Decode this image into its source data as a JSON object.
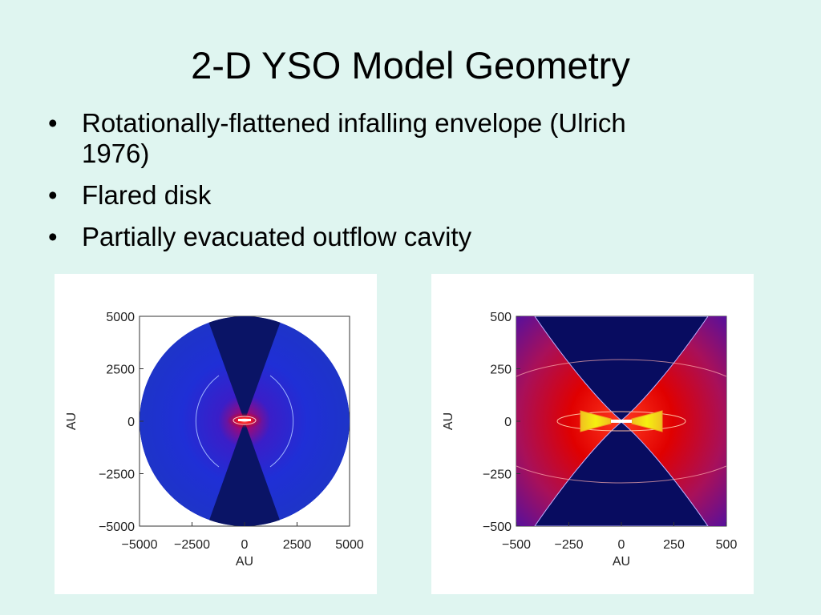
{
  "slide": {
    "title": "2-D YSO Model Geometry",
    "bullets": [
      "Rotationally-flattened infalling envelope (Ulrich 1976)",
      "Flared disk",
      "Partially evacuated outflow cavity"
    ],
    "bullet_marker": "•"
  },
  "chart_data": [
    {
      "type": "heatmap",
      "xlabel": "AU",
      "ylabel": "AU",
      "xlim": [
        -5000,
        5000
      ],
      "ylim": [
        -5000,
        5000
      ],
      "xticks": [
        "−5000",
        "−2500",
        "0",
        "2500",
        "5000"
      ],
      "yticks": [
        "5000",
        "2500",
        "0",
        "−2500",
        "−5000"
      ],
      "grid": false,
      "colors": {
        "envelope": "#1f2fd6",
        "cavity": "#0a1466",
        "core": "#c8001a",
        "contour": "#9fb6ff"
      }
    },
    {
      "type": "heatmap",
      "xlabel": "AU",
      "ylabel": "AU",
      "xlim": [
        -500,
        500
      ],
      "ylim": [
        -500,
        500
      ],
      "xticks": [
        "−500",
        "−250",
        "0",
        "250",
        "500"
      ],
      "yticks": [
        "500",
        "250",
        "0",
        "−250",
        "−500"
      ],
      "grid": false,
      "colors": {
        "outer": "#5a109a",
        "envelope": "#e00000",
        "disk": "#f5f010",
        "cavity": "#080c60",
        "contour": "#ffb0b0"
      }
    }
  ]
}
